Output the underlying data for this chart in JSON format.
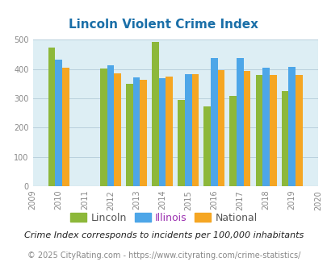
{
  "title": "Lincoln Violent Crime Index",
  "years": [
    2010,
    2012,
    2013,
    2014,
    2015,
    2016,
    2017,
    2018,
    2019
  ],
  "lincoln": [
    475,
    403,
    350,
    493,
    295,
    273,
    309,
    379,
    325
  ],
  "illinois": [
    433,
    413,
    372,
    369,
    383,
    438,
    438,
    405,
    408
  ],
  "national": [
    405,
    387,
    365,
    376,
    383,
    397,
    394,
    381,
    379
  ],
  "lincoln_color": "#8db83a",
  "illinois_color": "#4da6e8",
  "national_color": "#f5a623",
  "bg_color": "#ddeef4",
  "title_color": "#1a6fa8",
  "grid_color": "#b8d0dc",
  "xlim_lo": 2009,
  "xlim_hi": 2020,
  "ylim_lo": 0,
  "ylim_hi": 500,
  "yticks": [
    0,
    100,
    200,
    300,
    400,
    500
  ],
  "all_years": [
    2009,
    2010,
    2011,
    2012,
    2013,
    2014,
    2015,
    2016,
    2017,
    2018,
    2019,
    2020
  ],
  "legend_labels": [
    "Lincoln",
    "Illinois",
    "National"
  ],
  "legend_colors": [
    "#555555",
    "#9b30b0",
    "#555555"
  ],
  "footnote1": "Crime Index corresponds to incidents per 100,000 inhabitants",
  "footnote2": "© 2025 CityRating.com - https://www.cityrating.com/crime-statistics/",
  "bar_width": 0.27,
  "title_fontsize": 11,
  "tick_fontsize": 7,
  "legend_fontsize": 9,
  "footnote1_fontsize": 8,
  "footnote2_fontsize": 7
}
